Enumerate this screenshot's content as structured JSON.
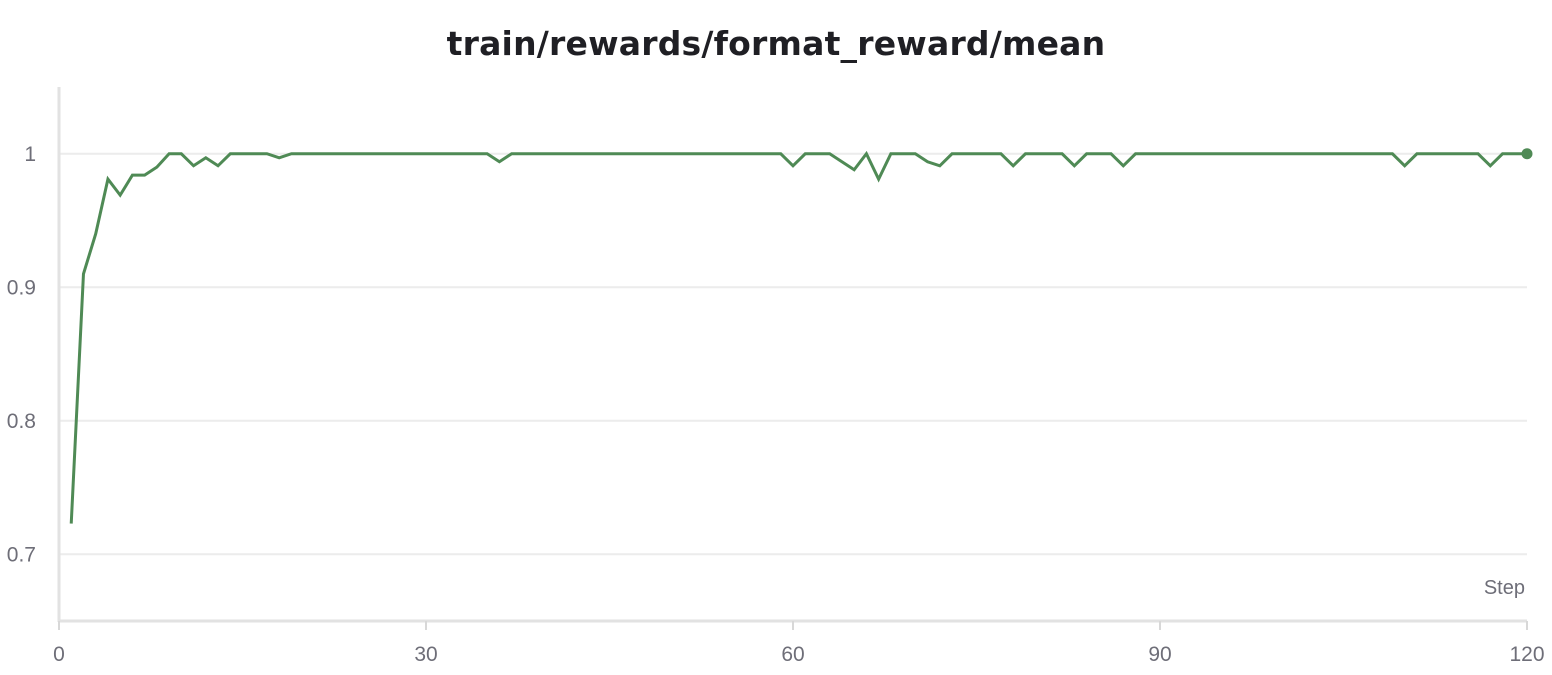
{
  "chart_data": {
    "type": "line",
    "title": "train/rewards/format_reward/mean",
    "xlabel": "Step",
    "ylabel": "",
    "xlim": [
      0,
      120
    ],
    "ylim": [
      0.65,
      1.05
    ],
    "x_ticks": [
      0,
      30,
      60,
      90,
      120
    ],
    "y_ticks": [
      0.7,
      0.8,
      0.9,
      1
    ],
    "grid": true,
    "colors": {
      "line": "#4f8a55",
      "grid": "#ececec",
      "axis": "#e2e2e2"
    },
    "series": [
      {
        "x": [
          1,
          2,
          3,
          4,
          5,
          6,
          7,
          8,
          9,
          10,
          11,
          12,
          13,
          14,
          15,
          16,
          17,
          18,
          19,
          20,
          21,
          22,
          23,
          24,
          25,
          26,
          27,
          28,
          29,
          30,
          31,
          32,
          33,
          34,
          35,
          36,
          37,
          38,
          39,
          40,
          41,
          42,
          43,
          44,
          45,
          46,
          47,
          48,
          49,
          50,
          51,
          52,
          53,
          54,
          55,
          56,
          57,
          58,
          59,
          60,
          61,
          62,
          63,
          64,
          65,
          66,
          67,
          68,
          69,
          70,
          71,
          72,
          73,
          74,
          75,
          76,
          77,
          78,
          79,
          80,
          81,
          82,
          83,
          84,
          85,
          86,
          87,
          88,
          89,
          90,
          91,
          92,
          93,
          94,
          95,
          96,
          97,
          98,
          99,
          100,
          101,
          102,
          103,
          104,
          105,
          106,
          107,
          108,
          109,
          110,
          111,
          112,
          113,
          114,
          115,
          116,
          117,
          118,
          119,
          120
        ],
        "y": [
          0.723,
          0.91,
          0.94,
          0.981,
          0.969,
          0.984,
          0.984,
          0.99,
          1,
          1,
          0.991,
          0.997,
          0.991,
          1,
          1,
          1,
          1,
          0.997,
          1,
          1,
          1,
          1,
          1,
          1,
          1,
          1,
          1,
          1,
          1,
          1,
          1,
          1,
          1,
          1,
          1,
          0.994,
          1,
          1,
          1,
          1,
          1,
          1,
          1,
          1,
          1,
          1,
          1,
          1,
          1,
          1,
          1,
          1,
          1,
          1,
          1,
          1,
          1,
          1,
          1,
          0.991,
          1,
          1,
          1,
          0.994,
          0.988,
          1,
          0.981,
          1,
          1,
          1,
          0.994,
          0.991,
          1,
          1,
          1,
          1,
          1,
          0.991,
          1,
          1,
          1,
          1,
          0.991,
          1,
          1,
          1,
          0.991,
          1,
          1,
          1,
          1,
          1,
          1,
          1,
          1,
          1,
          1,
          1,
          1,
          1,
          1,
          1,
          1,
          1,
          1,
          1,
          1,
          1,
          1,
          0.991,
          1,
          1,
          1,
          1,
          1,
          1,
          0.991,
          1,
          1,
          1
        ]
      }
    ]
  }
}
